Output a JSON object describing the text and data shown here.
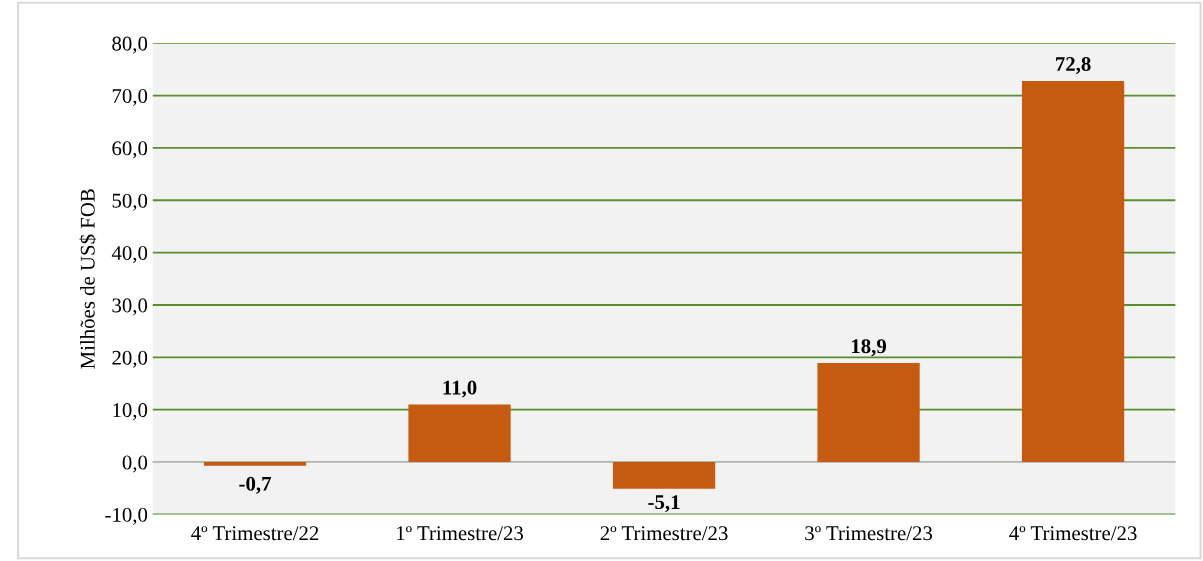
{
  "chart_data": {
    "type": "bar",
    "ylabel": "Milhões de US$ FOB",
    "categories": [
      "4º Trimestre/22",
      "1º Trimestre/23",
      "2º Trimestre/23",
      "3º Trimestre/23",
      "4º Trimestre/23"
    ],
    "values": [
      -0.7,
      11.0,
      -5.1,
      18.9,
      72.8
    ],
    "value_labels": [
      "-0,7",
      "11,0",
      "-5,1",
      "18,9",
      "72,8"
    ],
    "color": "#c55a11",
    "ylim": [
      -10,
      80
    ],
    "yticks": [
      {
        "value": -10,
        "label": "-10,0"
      },
      {
        "value": 0,
        "label": "0,0"
      },
      {
        "value": 10,
        "label": "10,0"
      },
      {
        "value": 20,
        "label": "20,0"
      },
      {
        "value": 30,
        "label": "30,0"
      },
      {
        "value": 40,
        "label": "40,0"
      },
      {
        "value": 50,
        "label": "50,0"
      },
      {
        "value": 60,
        "label": "60,0"
      },
      {
        "value": 70,
        "label": "70,0"
      },
      {
        "value": 80,
        "label": "80,0"
      }
    ],
    "grid": "y"
  }
}
